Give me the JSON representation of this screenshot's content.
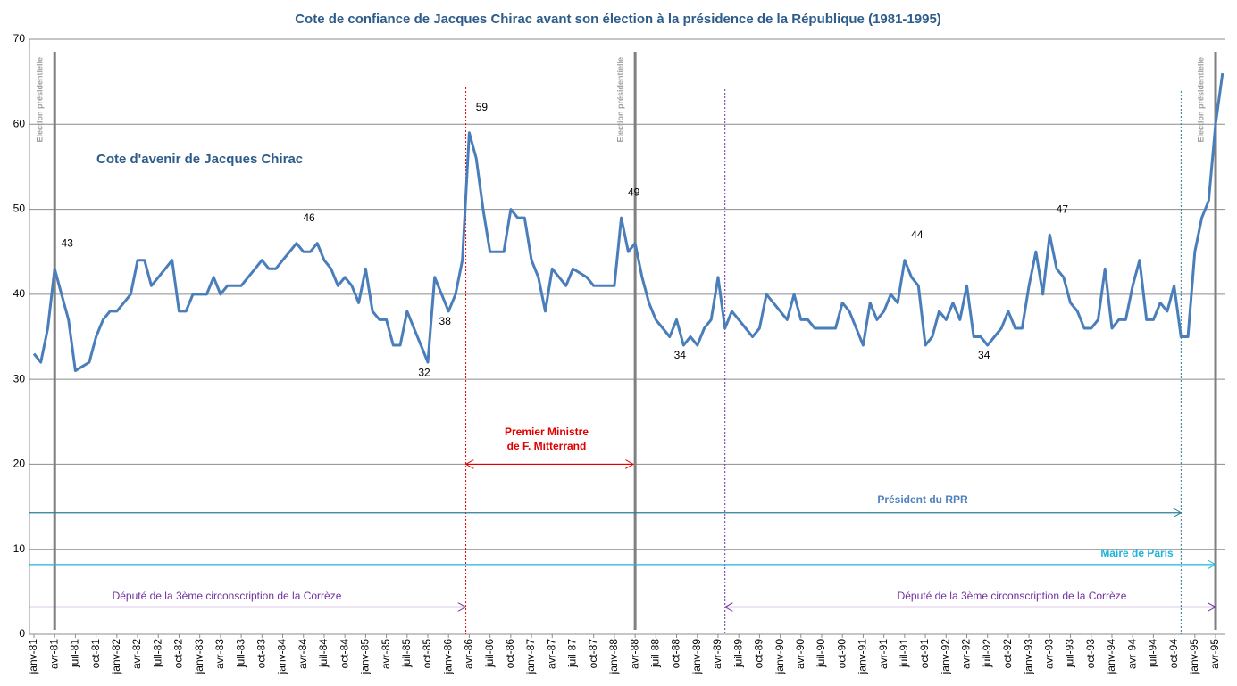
{
  "chart_data": {
    "type": "line",
    "title": "Cote de confiance de Jacques Chirac avant son élection à la présidence de la République (1981-1995)",
    "categories": [
      "janv-81",
      null,
      null,
      "avr-81",
      null,
      null,
      "juil-81",
      null,
      null,
      "oct-81",
      null,
      null,
      "janv-82",
      null,
      null,
      "avr-82",
      null,
      null,
      "juil-82",
      null,
      null,
      "oct-82",
      null,
      null,
      "janv-83",
      null,
      null,
      "avr-83",
      null,
      null,
      "juil-83",
      null,
      null,
      "oct-83",
      null,
      null,
      "janv-84",
      null,
      null,
      "avr-84",
      null,
      null,
      "juil-84",
      null,
      null,
      "oct-84",
      null,
      null,
      "janv-85",
      null,
      null,
      "avr-85",
      null,
      null,
      "juil-85",
      null,
      null,
      "oct-85",
      null,
      null,
      "janv-86",
      null,
      null,
      "avr-86",
      null,
      null,
      "juil-86",
      null,
      null,
      "oct-86",
      null,
      null,
      "janv-87",
      null,
      null,
      "avr-87",
      null,
      null,
      "juil-87",
      null,
      null,
      "oct-87",
      null,
      null,
      "janv-88",
      null,
      null,
      "avr-88",
      null,
      null,
      "juil-88",
      null,
      null,
      "oct-88",
      null,
      null,
      "janv-89",
      null,
      null,
      "avr-89",
      null,
      null,
      "juil-89",
      null,
      null,
      "oct-89",
      null,
      null,
      "janv-90",
      null,
      null,
      "avr-90",
      null,
      null,
      "juil-90",
      null,
      null,
      "oct-90",
      null,
      null,
      "janv-91",
      null,
      null,
      "avr-91",
      null,
      null,
      "juil-91",
      null,
      null,
      "oct-91",
      null,
      null,
      "janv-92",
      null,
      null,
      "avr-92",
      null,
      null,
      "juil-92",
      null,
      null,
      "oct-92",
      null,
      null,
      "janv-93",
      null,
      null,
      "avr-93",
      null,
      null,
      "juil-93",
      null,
      null,
      "oct-93",
      null,
      null,
      "janv-94",
      null,
      null,
      "avr-94",
      null,
      null,
      "juil-94",
      null,
      null,
      "oct-94",
      null,
      null,
      "janv-95",
      null,
      null,
      "avr-95",
      null
    ],
    "series": [
      {
        "name": "Cote d'avenir de Jacques Chirac",
        "color": "#4a7ebb",
        "values": [
          33,
          32,
          36,
          43,
          40,
          37,
          31,
          31.5,
          32,
          35,
          37,
          38,
          38,
          39,
          40,
          44,
          44,
          41,
          42,
          43,
          44,
          38,
          38,
          40,
          40,
          40,
          42,
          40,
          41,
          41,
          41,
          42,
          43,
          44,
          43,
          43,
          44,
          45,
          46,
          45,
          45,
          46,
          44,
          43,
          41,
          42,
          41,
          39,
          43,
          38,
          37,
          37,
          34,
          34,
          38,
          36,
          34,
          32,
          42,
          40,
          38,
          40,
          44,
          59,
          56,
          50,
          45,
          45,
          45,
          50,
          49,
          49,
          44,
          42,
          38,
          43,
          42,
          41,
          43,
          42.5,
          42,
          41,
          41,
          41,
          41,
          49,
          45,
          46,
          42,
          39,
          37,
          36,
          35,
          37,
          34,
          35,
          34,
          36,
          37,
          42,
          36,
          38,
          37,
          36,
          35,
          36,
          40,
          39,
          38,
          37,
          40,
          37,
          37,
          36,
          36,
          36,
          36,
          39,
          38,
          36,
          34,
          39,
          37,
          38,
          40,
          39,
          44,
          42,
          41,
          34,
          35,
          38,
          37,
          39,
          37,
          41,
          35,
          35,
          34,
          35,
          36,
          38,
          36,
          36,
          41,
          45,
          40,
          47,
          43,
          42,
          39,
          38,
          36,
          36,
          37,
          43,
          36,
          37,
          37,
          41,
          44,
          37,
          37,
          39,
          38,
          41,
          35,
          35,
          45,
          49,
          51,
          60,
          66
        ],
        "value_labels": [
          null,
          null,
          null,
          "43",
          null,
          null,
          null,
          null,
          null,
          null,
          null,
          null,
          null,
          null,
          null,
          null,
          null,
          null,
          null,
          null,
          null,
          null,
          null,
          null,
          null,
          null,
          null,
          null,
          null,
          null,
          null,
          null,
          null,
          null,
          null,
          null,
          null,
          null,
          "46",
          null,
          null,
          null,
          null,
          null,
          null,
          null,
          null,
          null,
          null,
          null,
          null,
          null,
          null,
          null,
          null,
          null,
          null,
          "32",
          null,
          null,
          "38",
          null,
          null,
          "59",
          null,
          null,
          null,
          null,
          null,
          null,
          null,
          null,
          null,
          null,
          null,
          null,
          null,
          null,
          null,
          null,
          null,
          null,
          null,
          null,
          null,
          "49",
          null,
          null,
          null,
          null,
          null,
          null,
          null,
          null,
          "34",
          null,
          null,
          null,
          null,
          null,
          null,
          null,
          null,
          null,
          null,
          null,
          null,
          null,
          null,
          null,
          null,
          null,
          null,
          null,
          null,
          null,
          null,
          null,
          null,
          null,
          null,
          null,
          null,
          null,
          null,
          null,
          "44",
          null,
          null,
          null,
          null,
          null,
          null,
          null,
          null,
          null,
          null,
          null,
          "34",
          null,
          null,
          null,
          null,
          null,
          null,
          null,
          null,
          "47",
          null,
          null,
          null,
          null,
          null,
          null,
          null,
          null,
          null,
          null,
          null,
          null,
          null,
          null,
          null,
          null,
          null,
          null,
          null,
          null,
          null,
          null,
          null,
          null,
          null
        ]
      }
    ],
    "ylim": [
      0,
      70
    ],
    "yticks": [
      0,
      10,
      20,
      30,
      40,
      50,
      60,
      70
    ],
    "grid": true,
    "annotations": {
      "election": "Election présidentielle",
      "premier_ministre": [
        "Premier Ministre",
        "de F. Mitterrand"
      ],
      "president_rpr": "Président du RPR",
      "maire": "Maire de Paris",
      "depute": "Député  de la 3ème circonscription de la Corrèze"
    }
  }
}
